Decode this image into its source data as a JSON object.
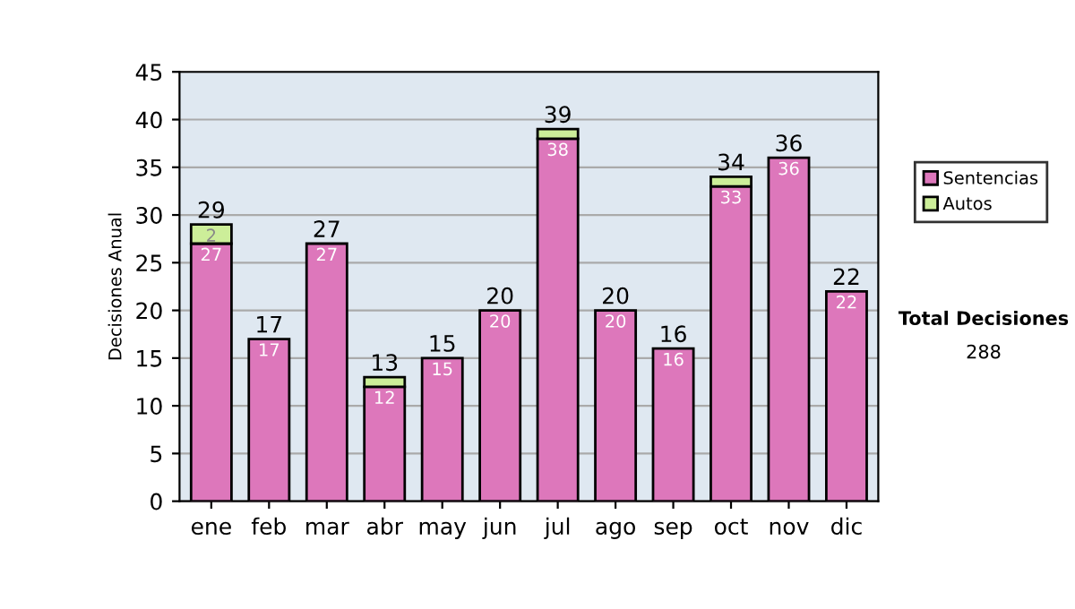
{
  "chart_data": {
    "type": "bar",
    "stacked": true,
    "ylabel": "Decisiones Anual",
    "categories": [
      "ene",
      "feb",
      "mar",
      "abr",
      "may",
      "jun",
      "jul",
      "ago",
      "sep",
      "oct",
      "nov",
      "dic"
    ],
    "series": [
      {
        "name": "Sentencias",
        "color": "#dd77bb",
        "values": [
          27,
          17,
          27,
          12,
          15,
          20,
          38,
          20,
          16,
          33,
          36,
          22
        ],
        "value_labels": [
          "27",
          "17",
          "27",
          "12",
          "15",
          "20",
          "38",
          "20",
          "16",
          "33",
          "36",
          "22"
        ]
      },
      {
        "name": "Autos",
        "color": "#ccee99",
        "values": [
          2,
          null,
          null,
          1,
          null,
          null,
          1,
          null,
          null,
          1,
          null,
          null
        ],
        "value_labels": [
          "2",
          null,
          null,
          null,
          null,
          null,
          null,
          null,
          null,
          null,
          null,
          null
        ]
      }
    ],
    "totals": [
      "29",
      "17",
      "27",
      "13",
      "15",
      "20",
      "39",
      "20",
      "16",
      "34",
      "36",
      "22"
    ],
    "ylim": [
      0,
      45
    ],
    "yticks": [
      0,
      5,
      10,
      15,
      20,
      25,
      30,
      35,
      40,
      45
    ],
    "grid": "y",
    "legend": "right",
    "annotations": [
      "Total Decisiones",
      "288"
    ]
  }
}
